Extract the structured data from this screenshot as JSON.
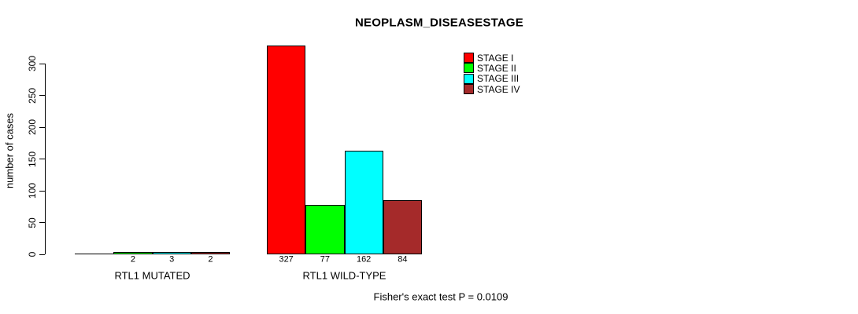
{
  "title": "NEOPLASM_DISEASESTAGE",
  "y_axis": {
    "label": "number of cases",
    "ticks": [
      0,
      50,
      100,
      150,
      200,
      250,
      300
    ]
  },
  "footer": "Fisher's exact test P = 0.0109",
  "legend": {
    "items": [
      {
        "label": "STAGE I",
        "color": "#FF0000"
      },
      {
        "label": "STAGE II",
        "color": "#00FF00"
      },
      {
        "label": "STAGE III",
        "color": "#00FFFF"
      },
      {
        "label": "STAGE IV",
        "color": "#A52A2A"
      }
    ]
  },
  "chart_data": {
    "type": "bar",
    "title": "NEOPLASM_DISEASESTAGE",
    "xlabel": "",
    "ylabel": "number of cases",
    "ylim": [
      0,
      327
    ],
    "y_ticks": [
      0,
      50,
      100,
      150,
      200,
      250,
      300
    ],
    "grid": false,
    "legend_position": "top-right",
    "series_names": [
      "STAGE I",
      "STAGE II",
      "STAGE III",
      "STAGE IV"
    ],
    "series_colors": [
      "#FF0000",
      "#00FF00",
      "#00FFFF",
      "#A52A2A"
    ],
    "groups": [
      {
        "label": "RTL1 MUTATED",
        "values": [
          0,
          2,
          3,
          2
        ],
        "bar_labels": [
          "",
          "2",
          "3",
          "2"
        ]
      },
      {
        "label": "RTL1 WILD-TYPE",
        "values": [
          327,
          77,
          162,
          84
        ],
        "bar_labels": [
          "327",
          "77",
          "162",
          "84"
        ]
      }
    ],
    "annotation": "Fisher's exact test P = 0.0109"
  }
}
